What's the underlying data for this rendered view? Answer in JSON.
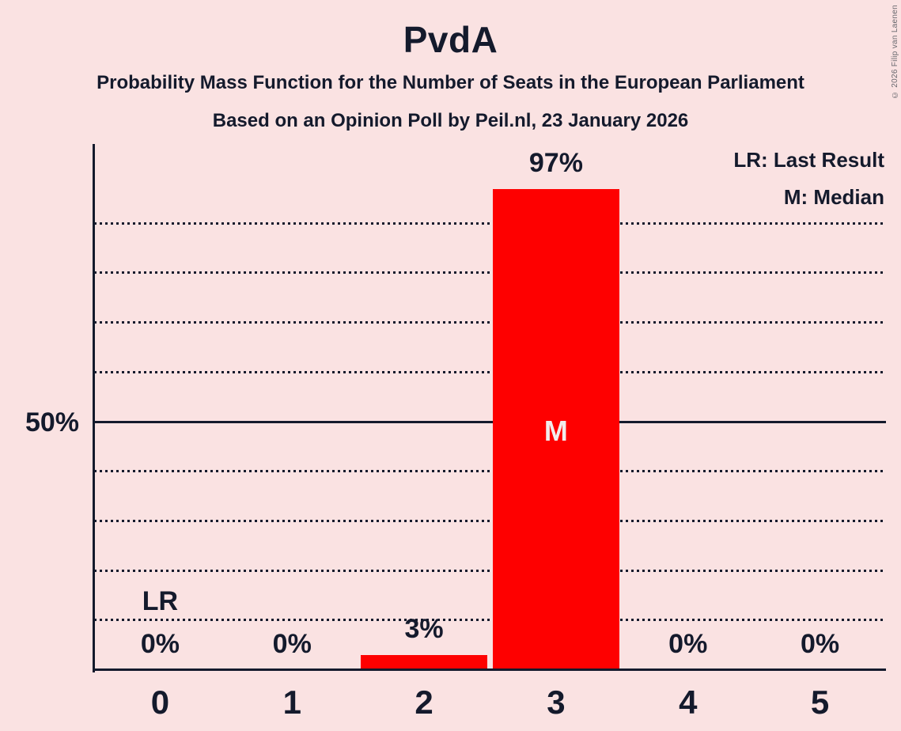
{
  "header": {
    "title": "PvdA",
    "subtitle_line1": "Probability Mass Function for the Number of Seats in the European Parliament",
    "subtitle_line2": "Based on an Opinion Poll by Peil.nl, 23 January 2026"
  },
  "legend": {
    "last_result": "LR: Last Result",
    "median": "M: Median",
    "position": "top-right"
  },
  "copyright": "© 2026 Filip van Laenen",
  "y_axis": {
    "tick_label": "50%"
  },
  "chart_data": {
    "type": "bar",
    "title": "PvdA",
    "xlabel": "",
    "ylabel": "",
    "categories": [
      "0",
      "1",
      "2",
      "3",
      "4",
      "5"
    ],
    "values": [
      0,
      0,
      3,
      97,
      0,
      0
    ],
    "bar_labels": [
      "0%",
      "0%",
      "3%",
      "97%",
      "0%",
      "0%"
    ],
    "ylim": [
      0,
      106
    ],
    "y_tick_labeled_pct": 50,
    "gridlines_pct": [
      10,
      20,
      30,
      40,
      50,
      60,
      70,
      80,
      90
    ],
    "solid_gridline_pct": 50,
    "grid_style": "dotted",
    "annotations": {
      "last_result_label": "LR",
      "last_result_seat_index": 0,
      "median_label": "M",
      "median_seat_index": 3
    },
    "colors": {
      "bar": "#fe0000",
      "background": "#fae2e2",
      "text": "#141a2c",
      "median_letter": "#f1ecec",
      "copyright_text": "#69696f"
    }
  }
}
